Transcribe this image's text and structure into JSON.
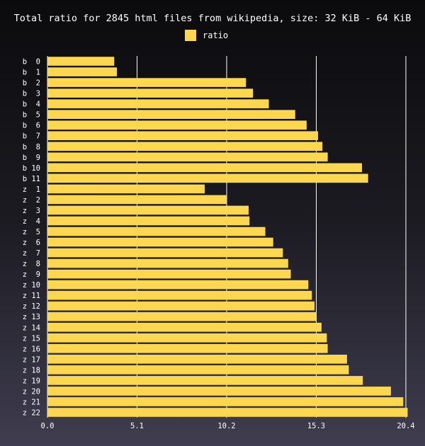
{
  "chart_data": {
    "type": "bar",
    "orientation": "horizontal",
    "title": "Total ratio for 2845 html files from wikipedia, size: 32 KiB - 64 KiB",
    "xlabel": "",
    "ylabel": "",
    "xlim": [
      0,
      20.4
    ],
    "xticks": [
      "0.0",
      "5.1",
      "10.2",
      "15.3",
      "20.4"
    ],
    "xtick_values": [
      0,
      5.1,
      10.2,
      15.3,
      20.4
    ],
    "grid": "vertical",
    "legend": "top-center",
    "bar_color": "#fdd74f",
    "categories": [
      "b  0",
      "b  1",
      "b  2",
      "b  3",
      "b  4",
      "b  5",
      "b  6",
      "b  7",
      "b  8",
      "b  9",
      "b 10",
      "b 11",
      "z  1",
      "z  2",
      "z  3",
      "z  4",
      "z  5",
      "z  6",
      "z  7",
      "z  8",
      "z  9",
      "z 10",
      "z 11",
      "z 12",
      "z 13",
      "z 14",
      "z 15",
      "z 16",
      "z 17",
      "z 18",
      "z 19",
      "z 20",
      "z 21",
      "z 22"
    ],
    "series": [
      {
        "name": "ratio",
        "values": [
          3.8,
          3.95,
          11.3,
          11.7,
          12.6,
          14.1,
          14.75,
          15.4,
          15.65,
          15.95,
          17.9,
          18.25,
          8.95,
          10.2,
          11.45,
          11.5,
          12.4,
          12.85,
          13.4,
          13.7,
          13.85,
          14.85,
          15.05,
          15.2,
          15.3,
          15.6,
          15.9,
          15.95,
          17.05,
          17.15,
          17.95,
          19.55,
          20.25,
          20.5
        ]
      }
    ]
  }
}
